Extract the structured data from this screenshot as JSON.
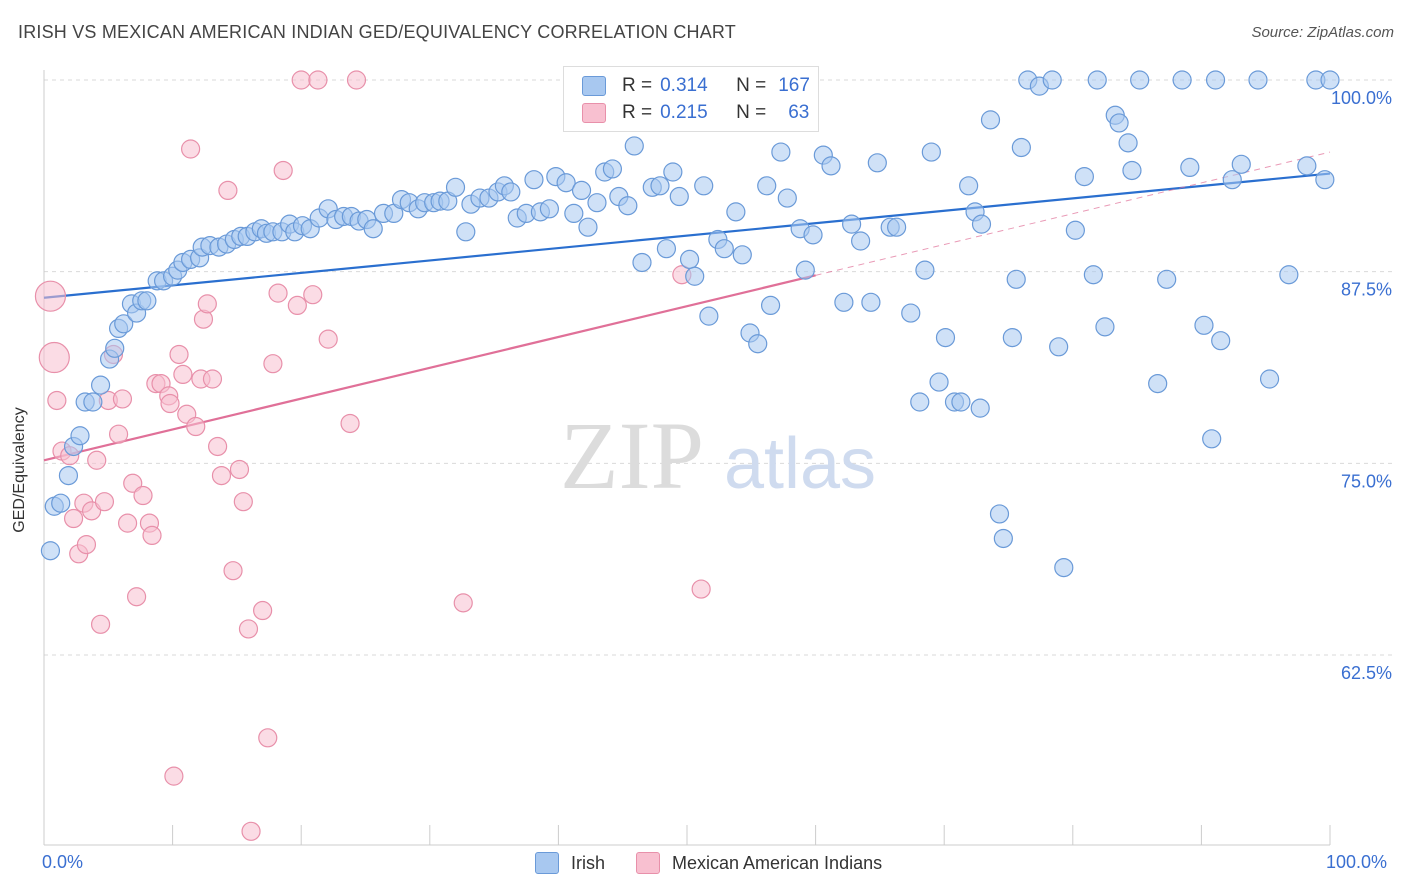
{
  "title": "IRISH VS MEXICAN AMERICAN INDIAN GED/EQUIVALENCY CORRELATION CHART",
  "source": "Source: ZipAtlas.com",
  "watermark": {
    "zip": "ZIP",
    "atlas": "atlas"
  },
  "legend": {
    "irish": {
      "r_label": "R =",
      "r_value": "0.314",
      "n_label": "N =",
      "n_value": "167"
    },
    "mexican": {
      "r_label": "R =",
      "r_value": "0.215",
      "n_label": "N =",
      "n_value": "63"
    }
  },
  "bottom_legend": {
    "irish": "Irish",
    "mexican": "Mexican American Indians"
  },
  "colors": {
    "irish_fill": "#a8c8f0",
    "irish_stroke": "#6a9ad8",
    "irish_line": "#2a6fcf",
    "mexican_fill": "#f8c0d0",
    "mexican_stroke": "#e890aa",
    "mexican_line": "#e07098",
    "tick_label": "#3a6fd1",
    "grid": "#d9d9d9"
  },
  "chart_data": {
    "type": "scatter",
    "title": "IRISH VS MEXICAN AMERICAN INDIAN GED/EQUIVALENCY CORRELATION CHART",
    "xlabel": "",
    "ylabel": "GED/Equivalency",
    "xlim": [
      0,
      100
    ],
    "ylim": [
      50.5,
      101.5
    ],
    "x_tick_labels": [
      "0.0%",
      "100.0%"
    ],
    "y_ticks": [
      62.5,
      75.0,
      87.5,
      100.0
    ],
    "y_tick_labels": [
      "62.5%",
      "75.0%",
      "87.5%",
      "100.0%"
    ],
    "grid": true,
    "legend_position": "top-center",
    "series": [
      {
        "name": "Irish",
        "r": 0.314,
        "n": 167,
        "trend": {
          "x": [
            0,
            100
          ],
          "y": [
            85.8,
            93.9
          ]
        },
        "points": [
          [
            0.5,
            69.3
          ],
          [
            0.8,
            72.2
          ],
          [
            1.3,
            72.4
          ],
          [
            1.9,
            74.2
          ],
          [
            2.3,
            76.1
          ],
          [
            2.8,
            76.8
          ],
          [
            3.2,
            79.0
          ],
          [
            3.8,
            79.0
          ],
          [
            4.4,
            80.1
          ],
          [
            5.1,
            81.8
          ],
          [
            5.5,
            82.5
          ],
          [
            5.8,
            83.8
          ],
          [
            6.2,
            84.1
          ],
          [
            6.8,
            85.4
          ],
          [
            7.2,
            84.8
          ],
          [
            7.6,
            85.6
          ],
          [
            8.0,
            85.6
          ],
          [
            8.8,
            86.9
          ],
          [
            9.3,
            86.9
          ],
          [
            10.0,
            87.2
          ],
          [
            10.4,
            87.6
          ],
          [
            10.8,
            88.1
          ],
          [
            11.4,
            88.3
          ],
          [
            12.1,
            88.4
          ],
          [
            12.3,
            89.1
          ],
          [
            12.9,
            89.2
          ],
          [
            13.6,
            89.1
          ],
          [
            14.2,
            89.3
          ],
          [
            14.8,
            89.6
          ],
          [
            15.3,
            89.8
          ],
          [
            15.8,
            89.8
          ],
          [
            16.4,
            90.1
          ],
          [
            16.9,
            90.3
          ],
          [
            17.3,
            90.0
          ],
          [
            17.8,
            90.1
          ],
          [
            18.5,
            90.1
          ],
          [
            19.1,
            90.6
          ],
          [
            19.5,
            90.1
          ],
          [
            20.1,
            90.5
          ],
          [
            20.7,
            90.3
          ],
          [
            21.4,
            91.0
          ],
          [
            22.1,
            91.6
          ],
          [
            22.7,
            90.9
          ],
          [
            23.3,
            91.1
          ],
          [
            23.9,
            91.1
          ],
          [
            24.5,
            90.8
          ],
          [
            25.1,
            90.9
          ],
          [
            25.6,
            90.3
          ],
          [
            26.4,
            91.3
          ],
          [
            27.2,
            91.3
          ],
          [
            27.8,
            92.2
          ],
          [
            28.4,
            92.0
          ],
          [
            29.1,
            91.6
          ],
          [
            29.6,
            92.0
          ],
          [
            30.3,
            92.0
          ],
          [
            30.8,
            92.1
          ],
          [
            31.4,
            92.1
          ],
          [
            32.0,
            93.0
          ],
          [
            32.8,
            90.1
          ],
          [
            33.2,
            91.9
          ],
          [
            33.9,
            92.3
          ],
          [
            34.6,
            92.3
          ],
          [
            35.3,
            92.7
          ],
          [
            35.8,
            93.1
          ],
          [
            36.3,
            92.7
          ],
          [
            36.8,
            91.0
          ],
          [
            37.5,
            91.3
          ],
          [
            38.1,
            93.5
          ],
          [
            38.6,
            91.4
          ],
          [
            39.3,
            91.6
          ],
          [
            39.8,
            93.7
          ],
          [
            40.6,
            93.3
          ],
          [
            41.2,
            91.3
          ],
          [
            41.8,
            92.8
          ],
          [
            42.3,
            90.4
          ],
          [
            43.0,
            92.0
          ],
          [
            43.6,
            94.0
          ],
          [
            44.2,
            94.2
          ],
          [
            44.7,
            92.4
          ],
          [
            45.4,
            91.8
          ],
          [
            45.9,
            95.7
          ],
          [
            46.5,
            88.1
          ],
          [
            47.3,
            93.0
          ],
          [
            47.9,
            93.1
          ],
          [
            48.4,
            89.0
          ],
          [
            48.9,
            94.0
          ],
          [
            49.4,
            92.4
          ],
          [
            50.2,
            88.3
          ],
          [
            50.6,
            87.2
          ],
          [
            51.3,
            93.1
          ],
          [
            51.7,
            84.6
          ],
          [
            52.4,
            89.6
          ],
          [
            52.9,
            89.0
          ],
          [
            53.8,
            91.4
          ],
          [
            54.3,
            88.6
          ],
          [
            54.9,
            83.5
          ],
          [
            55.5,
            82.8
          ],
          [
            56.2,
            93.1
          ],
          [
            56.5,
            85.3
          ],
          [
            57.3,
            95.3
          ],
          [
            57.8,
            92.3
          ],
          [
            58.8,
            90.3
          ],
          [
            59.2,
            87.6
          ],
          [
            59.8,
            89.9
          ],
          [
            60.6,
            95.1
          ],
          [
            61.2,
            94.4
          ],
          [
            62.2,
            85.5
          ],
          [
            62.8,
            90.6
          ],
          [
            63.5,
            89.5
          ],
          [
            64.3,
            85.5
          ],
          [
            64.8,
            94.6
          ],
          [
            65.8,
            90.4
          ],
          [
            66.3,
            90.4
          ],
          [
            67.4,
            84.8
          ],
          [
            68.1,
            79.0
          ],
          [
            68.5,
            87.6
          ],
          [
            69.0,
            95.3
          ],
          [
            69.6,
            80.3
          ],
          [
            70.1,
            83.2
          ],
          [
            70.8,
            79.0
          ],
          [
            71.3,
            79.0
          ],
          [
            71.9,
            93.1
          ],
          [
            72.4,
            91.4
          ],
          [
            72.8,
            78.6
          ],
          [
            72.9,
            90.6
          ],
          [
            73.6,
            97.4
          ],
          [
            74.3,
            71.7
          ],
          [
            74.6,
            70.1
          ],
          [
            75.3,
            83.2
          ],
          [
            75.6,
            87.0
          ],
          [
            76.0,
            95.6
          ],
          [
            76.5,
            100.0
          ],
          [
            77.4,
            99.6
          ],
          [
            78.4,
            100.0
          ],
          [
            78.9,
            82.6
          ],
          [
            79.3,
            68.2
          ],
          [
            80.2,
            90.2
          ],
          [
            80.9,
            93.7
          ],
          [
            81.6,
            87.3
          ],
          [
            81.9,
            100.0
          ],
          [
            82.5,
            83.9
          ],
          [
            83.3,
            97.7
          ],
          [
            83.6,
            97.2
          ],
          [
            84.3,
            95.9
          ],
          [
            84.6,
            94.1
          ],
          [
            85.2,
            100.0
          ],
          [
            86.6,
            80.2
          ],
          [
            87.3,
            87.0
          ],
          [
            88.5,
            100.0
          ],
          [
            89.1,
            94.3
          ],
          [
            90.2,
            84.0
          ],
          [
            90.8,
            76.6
          ],
          [
            91.1,
            100.0
          ],
          [
            91.5,
            83.0
          ],
          [
            92.4,
            93.5
          ],
          [
            93.1,
            94.5
          ],
          [
            94.4,
            100.0
          ],
          [
            95.3,
            80.5
          ],
          [
            96.8,
            87.3
          ],
          [
            98.2,
            94.4
          ],
          [
            98.9,
            100.0
          ],
          [
            99.6,
            93.5
          ],
          [
            100.0,
            100.0
          ]
        ]
      },
      {
        "name": "Mexican American Indians",
        "r": 0.215,
        "n": 63,
        "trend": {
          "x": [
            0,
            100
          ],
          "y": [
            75.2,
            95.3
          ],
          "solid_until_x": 60
        },
        "points": [
          [
            0.5,
            85.9
          ],
          [
            0.8,
            81.9
          ],
          [
            1.0,
            79.1
          ],
          [
            1.4,
            75.8
          ],
          [
            2.0,
            75.5
          ],
          [
            2.3,
            71.4
          ],
          [
            2.7,
            69.1
          ],
          [
            3.1,
            72.4
          ],
          [
            3.3,
            69.7
          ],
          [
            3.7,
            71.9
          ],
          [
            4.1,
            75.2
          ],
          [
            4.4,
            64.5
          ],
          [
            4.7,
            72.5
          ],
          [
            5.0,
            79.1
          ],
          [
            5.4,
            82.1
          ],
          [
            5.8,
            76.9
          ],
          [
            6.1,
            79.2
          ],
          [
            6.5,
            71.1
          ],
          [
            6.9,
            73.7
          ],
          [
            7.2,
            66.3
          ],
          [
            7.7,
            72.9
          ],
          [
            8.2,
            71.1
          ],
          [
            8.4,
            70.3
          ],
          [
            8.7,
            80.2
          ],
          [
            9.1,
            80.2
          ],
          [
            9.7,
            79.4
          ],
          [
            9.8,
            78.9
          ],
          [
            10.1,
            54.6
          ],
          [
            10.5,
            82.1
          ],
          [
            10.8,
            80.8
          ],
          [
            11.1,
            78.2
          ],
          [
            11.4,
            95.5
          ],
          [
            11.8,
            77.4
          ],
          [
            12.2,
            80.5
          ],
          [
            12.4,
            84.4
          ],
          [
            12.7,
            85.4
          ],
          [
            13.1,
            80.5
          ],
          [
            13.5,
            76.1
          ],
          [
            13.8,
            74.2
          ],
          [
            14.3,
            92.8
          ],
          [
            14.7,
            68.0
          ],
          [
            15.2,
            74.6
          ],
          [
            15.5,
            72.5
          ],
          [
            15.9,
            64.2
          ],
          [
            16.1,
            51.0
          ],
          [
            17.0,
            65.4
          ],
          [
            17.4,
            57.1
          ],
          [
            17.8,
            81.5
          ],
          [
            18.2,
            86.1
          ],
          [
            18.6,
            94.1
          ],
          [
            19.7,
            85.3
          ],
          [
            20.0,
            100.0
          ],
          [
            20.9,
            86.0
          ],
          [
            21.3,
            100.0
          ],
          [
            22.1,
            83.1
          ],
          [
            23.8,
            77.6
          ],
          [
            24.3,
            100.0
          ],
          [
            32.6,
            65.9
          ],
          [
            49.6,
            87.3
          ],
          [
            51.1,
            66.8
          ]
        ]
      }
    ]
  }
}
